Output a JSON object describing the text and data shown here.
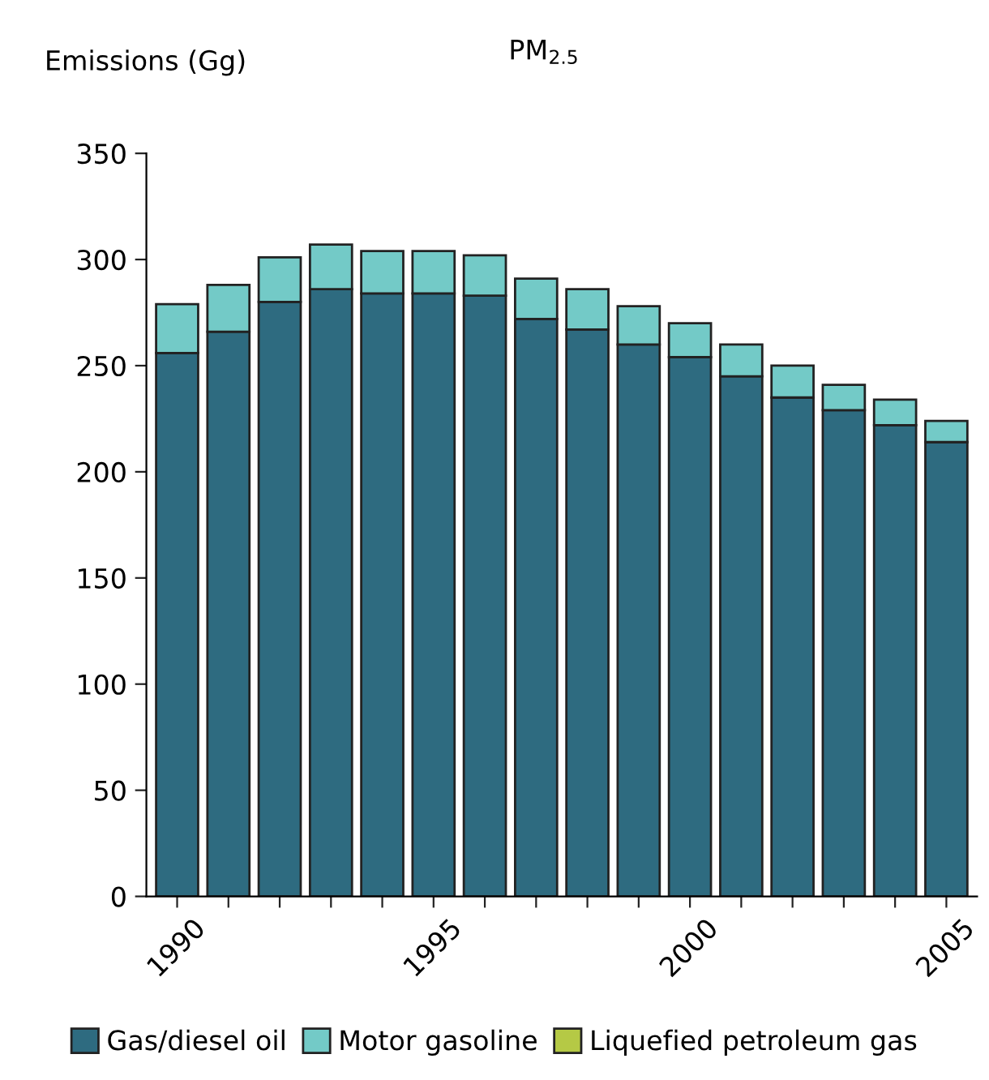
{
  "chart_data": {
    "type": "bar",
    "stacked": true,
    "title": "PM$_{2.5}$",
    "ylabel": "Emissions (Gg)",
    "categories": [
      "1990",
      null,
      null,
      null,
      null,
      "1995",
      null,
      null,
      null,
      null,
      "2000",
      null,
      null,
      null,
      null,
      "2005"
    ],
    "series": [
      {
        "name": "Gas/diesel oil",
        "color": "#2e6b80",
        "values": [
          256,
          266,
          280,
          286,
          284,
          284,
          283,
          272,
          267,
          260,
          254,
          245,
          235,
          229,
          222,
          214
        ]
      },
      {
        "name": "Motor gasoline",
        "color": "#73cac7",
        "values": [
          23,
          22,
          21,
          21,
          20,
          20,
          19,
          19,
          19,
          18,
          16,
          15,
          15,
          12,
          12,
          10
        ]
      },
      {
        "name": "Liquefied petroleum gas",
        "color": "#b5c945",
        "values": [
          null,
          null,
          null,
          null,
          null,
          null,
          null,
          null,
          null,
          null,
          null,
          null,
          null,
          null,
          null,
          null
        ]
      }
    ],
    "ylim": [
      0,
      350
    ],
    "yticks": [
      0,
      50,
      100,
      150,
      200,
      250,
      300,
      350
    ],
    "grid": false,
    "legend": "bottom"
  }
}
